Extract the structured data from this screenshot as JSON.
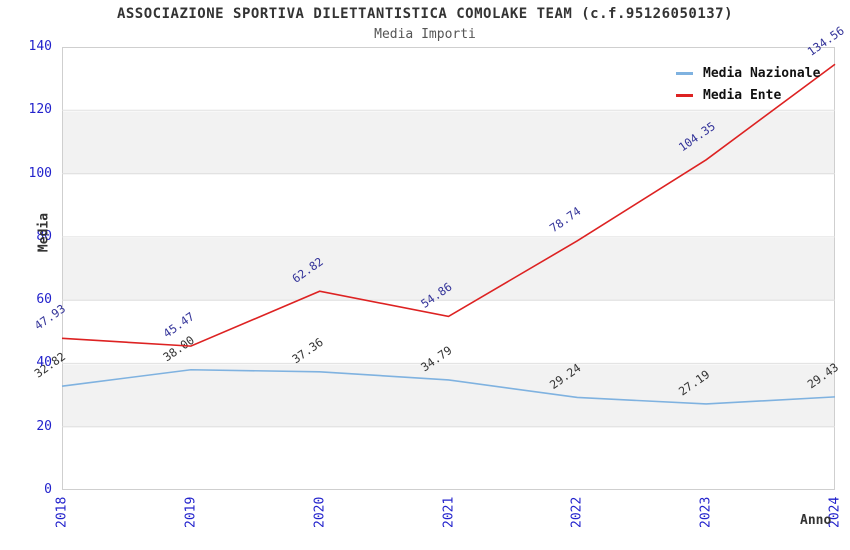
{
  "chart_data": {
    "type": "line",
    "title": "ASSOCIAZIONE SPORTIVA DILETTANTISTICA COMOLAKE TEAM (c.f.95126050137)",
    "subtitle": "Media Importi",
    "xlabel": "Anno",
    "ylabel": "Media",
    "categories": [
      "2018",
      "2019",
      "2020",
      "2021",
      "2022",
      "2023",
      "2024"
    ],
    "ylim": [
      0,
      140
    ],
    "yticks": [
      0,
      20,
      40,
      60,
      80,
      100,
      120,
      140
    ],
    "grid": "horizontal-bands",
    "legend_position": "top-right-inside",
    "colors": {
      "axis_tick_text": "#2222cc",
      "band_fill": "#f2f2f2",
      "gridline": "#e0e0e0",
      "plot_border": "#cfcfcf"
    },
    "series": [
      {
        "name": "Media Nazionale",
        "color": "#7fb2e0",
        "label_color": "#333333",
        "values": [
          32.82,
          38.0,
          37.36,
          34.79,
          29.24,
          27.19,
          29.43
        ],
        "value_labels": [
          "32.82",
          "38.00",
          "37.36",
          "34.79",
          "29.24",
          "27.19",
          "29.43"
        ]
      },
      {
        "name": "Media Ente",
        "color": "#dd2222",
        "label_color": "#333399",
        "values": [
          47.93,
          45.47,
          62.82,
          54.86,
          78.74,
          104.35,
          134.56
        ],
        "value_labels": [
          "47.93",
          "45.47",
          "62.82",
          "54.86",
          "78.74",
          "104.35",
          "134.56"
        ]
      }
    ]
  }
}
